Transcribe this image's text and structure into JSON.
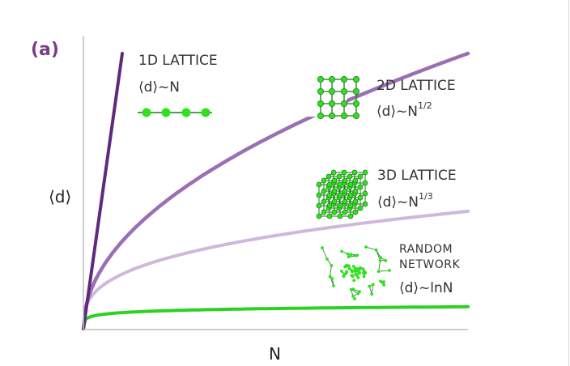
{
  "panel_label": "(a)",
  "colors": {
    "lattice_1d": "#5e2a7e",
    "lattice_2d": "#9b6fb3",
    "lattice_3d": "#d0b7dc",
    "random_network": "#2bd21f",
    "node": "#2ee31e",
    "axis": "#bdbdbd"
  },
  "icons": {
    "lattice_1d": "chain-of-nodes-icon",
    "lattice_2d": "square-grid-icon",
    "lattice_3d": "cubic-lattice-icon",
    "random_network": "random-network-icon"
  },
  "chart_data": {
    "type": "line",
    "xlabel": "N",
    "ylabel": "⟨d⟩",
    "grid": false,
    "series": [
      {
        "key": "lattice_1d",
        "line1": "1D LATTICE",
        "formula_base": "⟨d⟩~N",
        "formula_exp": "",
        "scaling": "linear"
      },
      {
        "key": "lattice_2d",
        "line1": "2D LATTICE",
        "formula_base": "⟨d⟩~N",
        "formula_exp": "1/2",
        "scaling": "square-root"
      },
      {
        "key": "lattice_3d",
        "line1": "3D LATTICE",
        "formula_base": "⟨d⟩~N",
        "formula_exp": "1/3",
        "scaling": "cube-root"
      },
      {
        "key": "random_network",
        "line1": "RANDOM",
        "line2": "NETWORK",
        "formula_base": "⟨d⟩~lnN",
        "formula_exp": "",
        "scaling": "logarithmic"
      }
    ]
  }
}
